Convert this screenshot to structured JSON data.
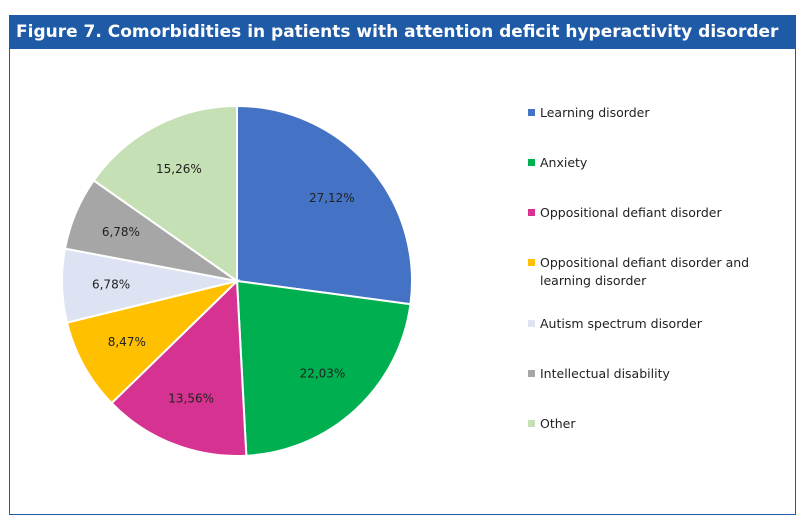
{
  "chart_data": {
    "type": "pie",
    "title": "Figure 7. Comorbidities in patients with attention deficit hyperactivity disorder",
    "legend_position": "right",
    "slices": [
      {
        "name": "Learning disorder",
        "value": 27.12,
        "label": "27,12%",
        "color": "#4472c4"
      },
      {
        "name": "Anxiety",
        "value": 22.03,
        "label": "22,03%",
        "color": "#00b050"
      },
      {
        "name": "Oppositional defiant disorder",
        "value": 13.56,
        "label": "13,56%",
        "color": "#d63291"
      },
      {
        "name": "Oppositional defiant disorder and learning disorder",
        "value": 8.47,
        "label": "8,47%",
        "color": "#ffc000"
      },
      {
        "name": "Autism spectrum disorder",
        "value": 6.78,
        "label": "6,78%",
        "color": "#dde3f3"
      },
      {
        "name": "Intellectual disability",
        "value": 6.78,
        "label": "6,78%",
        "color": "#a6a6a6"
      },
      {
        "name": "Other",
        "value": 15.26,
        "label": "15,26%",
        "color": "#c5e0b4"
      }
    ]
  }
}
